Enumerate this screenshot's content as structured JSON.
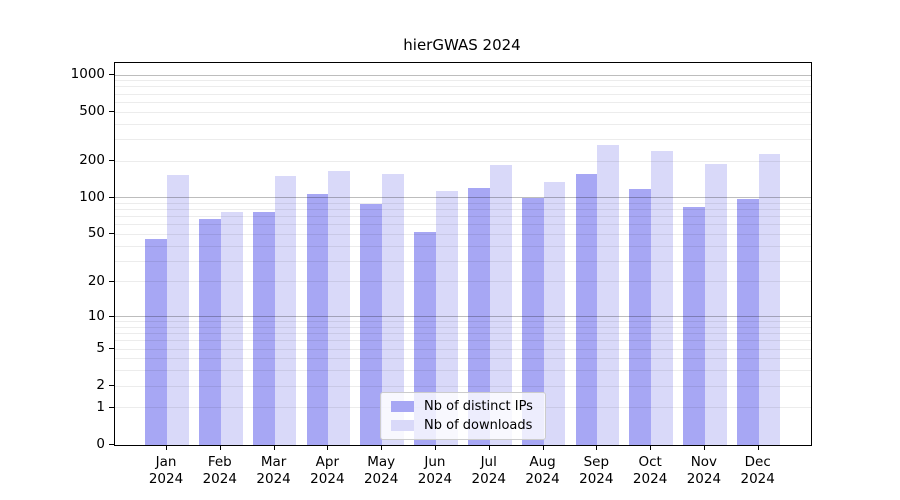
{
  "chart_data": {
    "type": "bar",
    "title": "hierGWAS 2024",
    "months": [
      "Jan",
      "Feb",
      "Mar",
      "Apr",
      "May",
      "Jun",
      "Jul",
      "Aug",
      "Sep",
      "Oct",
      "Nov",
      "Dec"
    ],
    "year": "2024",
    "series": [
      {
        "name": "Nb of distinct IPs",
        "color": "#a7a7f4",
        "values": [
          46,
          67,
          76,
          108,
          89,
          52,
          121,
          100,
          158,
          118,
          84,
          97
        ]
      },
      {
        "name": "Nb of downloads",
        "color": "#d9d9f9",
        "values": [
          153,
          77,
          151,
          166,
          158,
          113,
          185,
          135,
          270,
          240,
          190,
          229
        ]
      }
    ],
    "y_axis": {
      "scale": "log10(value+1)",
      "tick_labels": [
        1000,
        500,
        200,
        100,
        50,
        20,
        10,
        5,
        2,
        1,
        0
      ],
      "range": [
        0,
        1250
      ]
    },
    "grid": {
      "horizontal": true,
      "major_values": [
        10,
        100,
        1000
      ],
      "major_color": "#bdbdbd",
      "minor_color": "#ececec"
    },
    "legend_position": "inside-bottom-center"
  },
  "frame": {
    "background": "#ffffff",
    "spine_color": "#000000",
    "text_color": "#000000"
  }
}
